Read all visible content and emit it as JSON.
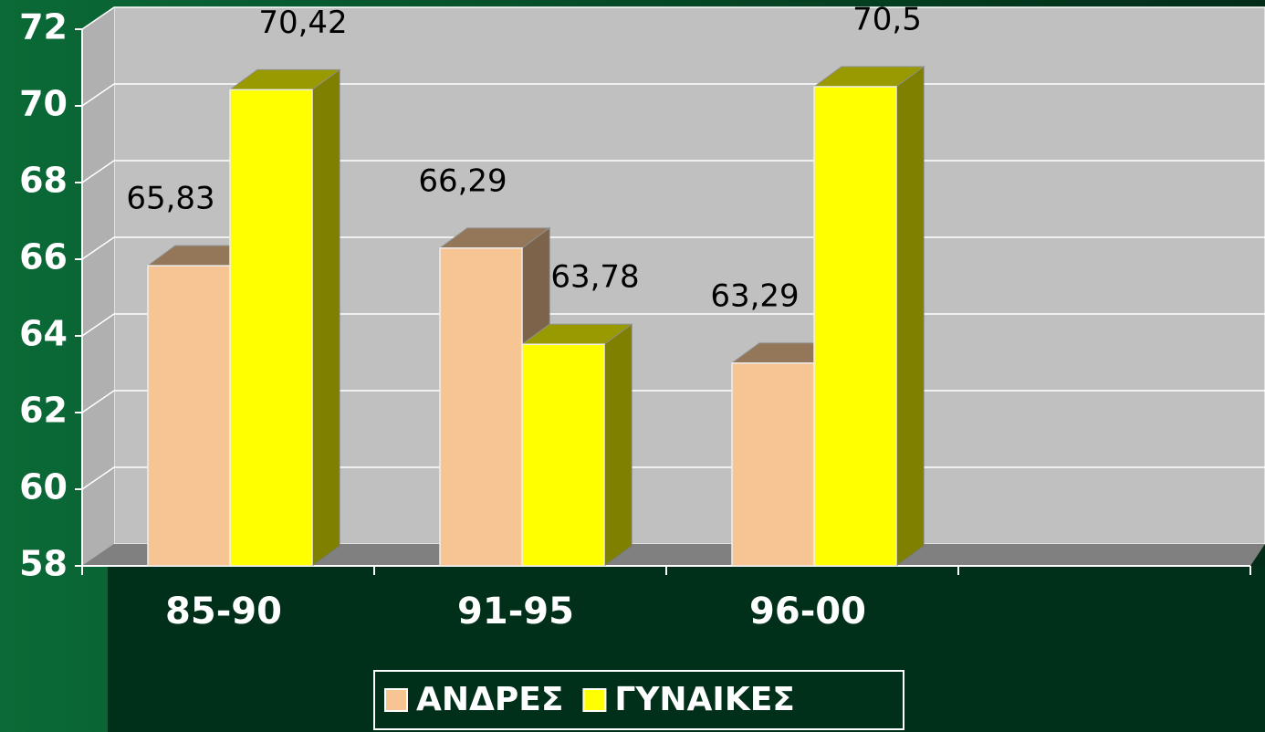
{
  "chart_data": {
    "type": "bar3d",
    "categories": [
      "85-90",
      "91-95",
      "96-00",
      null
    ],
    "series": [
      {
        "name": "ΑΝΔΡΕΣ",
        "color": "#f7c594",
        "values": [
          65.83,
          66.29,
          63.29,
          null
        ],
        "value_labels": [
          "65,83",
          "66,29",
          "63,29",
          null
        ]
      },
      {
        "name": "ΓΥΝΑΙΚΕΣ",
        "color": "#ffff00",
        "values": [
          70.42,
          63.78,
          70.5,
          null
        ],
        "value_labels": [
          "70,42",
          "63,78",
          "70,5",
          null
        ]
      }
    ],
    "ylim": [
      58,
      72
    ],
    "yticks": [
      58,
      60,
      62,
      64,
      66,
      68,
      70,
      72
    ],
    "grid": true,
    "legend": "bottom"
  }
}
